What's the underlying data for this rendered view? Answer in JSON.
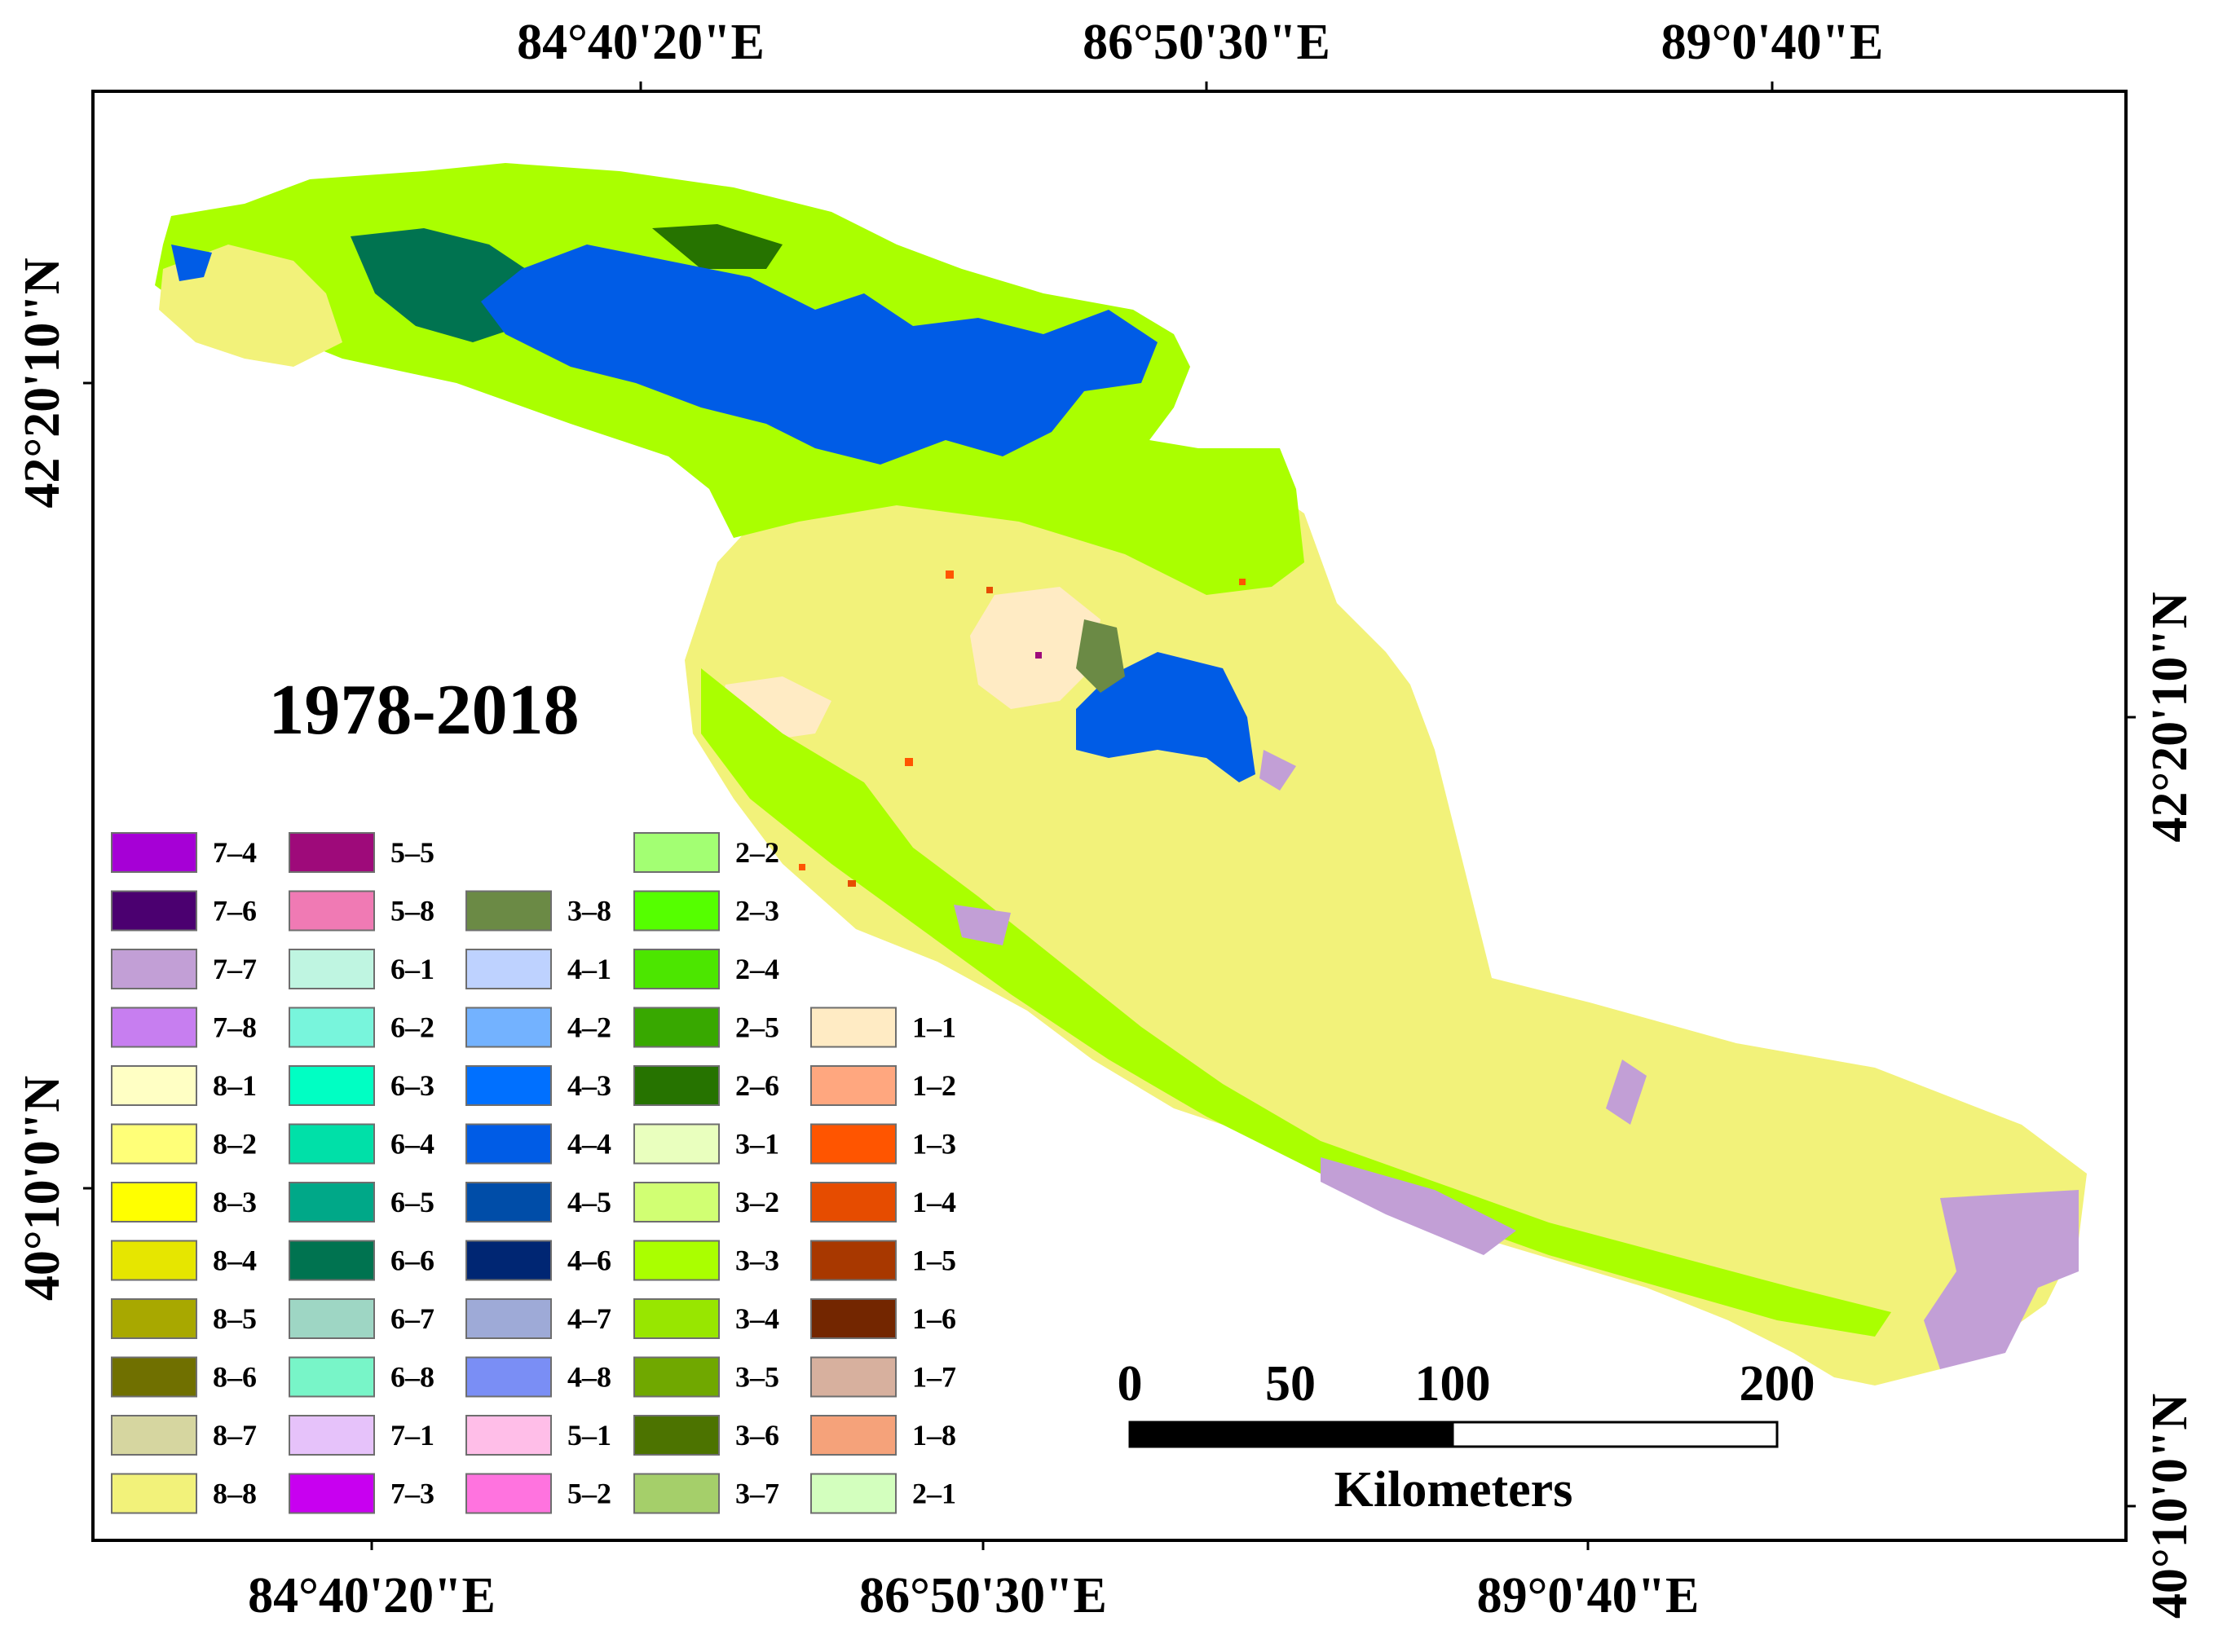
{
  "map": {
    "period_label": "1978-2018",
    "top_ticks": [
      "84°40'20\"E",
      "86°50'30\"E",
      "89°0'40\"E"
    ],
    "bottom_ticks": [
      "84°40'20\"E",
      "86°50'30\"E",
      "89°0'40\"E"
    ],
    "left_ticks": [
      "42°20'10\"N",
      "40°10'0\"N"
    ],
    "right_ticks": [
      "42°20'10\"N",
      "40°10'0\"N"
    ]
  },
  "scale_bar": {
    "labels": [
      "0",
      "50",
      "100",
      "200"
    ],
    "unit": "Kilometers"
  },
  "legend": {
    "columns": [
      [
        {
          "code": "7–4",
          "color": "#a600d6"
        },
        {
          "code": "7–6",
          "color": "#4b0070"
        },
        {
          "code": "7–7",
          "color": "#c29fd6"
        },
        {
          "code": "7–8",
          "color": "#c77ef0"
        },
        {
          "code": "8–1",
          "color": "#ffffc4"
        },
        {
          "code": "8–2",
          "color": "#ffff78"
        },
        {
          "code": "8–3",
          "color": "#ffff00"
        },
        {
          "code": "8–4",
          "color": "#e6e600"
        },
        {
          "code": "8–5",
          "color": "#a8a800"
        },
        {
          "code": "8–6",
          "color": "#707000"
        },
        {
          "code": "8–7",
          "color": "#d6d6a0"
        },
        {
          "code": "8–8",
          "color": "#f2f27a"
        }
      ],
      [
        {
          "code": "5–5",
          "color": "#9e0a7a"
        },
        {
          "code": "5–8",
          "color": "#f07ab4"
        },
        {
          "code": "6–1",
          "color": "#bff5e1"
        },
        {
          "code": "6–2",
          "color": "#78f5dc"
        },
        {
          "code": "6–3",
          "color": "#00ffc3"
        },
        {
          "code": "6–4",
          "color": "#00e0a8"
        },
        {
          "code": "6–5",
          "color": "#00a888"
        },
        {
          "code": "6–6",
          "color": "#007350"
        },
        {
          "code": "6–7",
          "color": "#9ed6c4"
        },
        {
          "code": "6–8",
          "color": "#78f5c8"
        },
        {
          "code": "7–1",
          "color": "#e6c2fa"
        },
        {
          "code": "7–3",
          "color": "#c800f0"
        }
      ],
      [
        {
          "code": "",
          "color": ""
        },
        {
          "code": "3–8",
          "color": "#6b8a45"
        },
        {
          "code": "4–1",
          "color": "#bed2ff"
        },
        {
          "code": "4–2",
          "color": "#73b2ff"
        },
        {
          "code": "4–3",
          "color": "#0070ff"
        },
        {
          "code": "4–4",
          "color": "#005ce6"
        },
        {
          "code": "4–5",
          "color": "#004da8"
        },
        {
          "code": "4–6",
          "color": "#002673"
        },
        {
          "code": "4–7",
          "color": "#9eaad7"
        },
        {
          "code": "4–8",
          "color": "#7a8ef5"
        },
        {
          "code": "5–1",
          "color": "#ffbee8"
        },
        {
          "code": "5–2",
          "color": "#ff73df"
        }
      ],
      [
        {
          "code": "2–2",
          "color": "#a3ff73"
        },
        {
          "code": "2–3",
          "color": "#55ff00"
        },
        {
          "code": "2–4",
          "color": "#4ce600"
        },
        {
          "code": "2–5",
          "color": "#38a800"
        },
        {
          "code": "2–6",
          "color": "#267300"
        },
        {
          "code": "3–1",
          "color": "#e9ffbe"
        },
        {
          "code": "3–2",
          "color": "#d1ff73"
        },
        {
          "code": "3–3",
          "color": "#aaff00"
        },
        {
          "code": "3–4",
          "color": "#98e600"
        },
        {
          "code": "3–5",
          "color": "#70a800"
        },
        {
          "code": "3–6",
          "color": "#4c7300"
        },
        {
          "code": "3–7",
          "color": "#a5cf6a"
        }
      ],
      [
        {
          "code": "1–1",
          "color": "#ffebc4"
        },
        {
          "code": "1–2",
          "color": "#ffa77f"
        },
        {
          "code": "1–3",
          "color": "#ff5500"
        },
        {
          "code": "1–4",
          "color": "#e64c00"
        },
        {
          "code": "1–5",
          "color": "#a83800"
        },
        {
          "code": "1–6",
          "color": "#732600"
        },
        {
          "code": "1–7",
          "color": "#d7b09e"
        },
        {
          "code": "1–8",
          "color": "#f5a27a"
        },
        {
          "code": "2–1",
          "color": "#d3ffbe"
        }
      ]
    ]
  }
}
